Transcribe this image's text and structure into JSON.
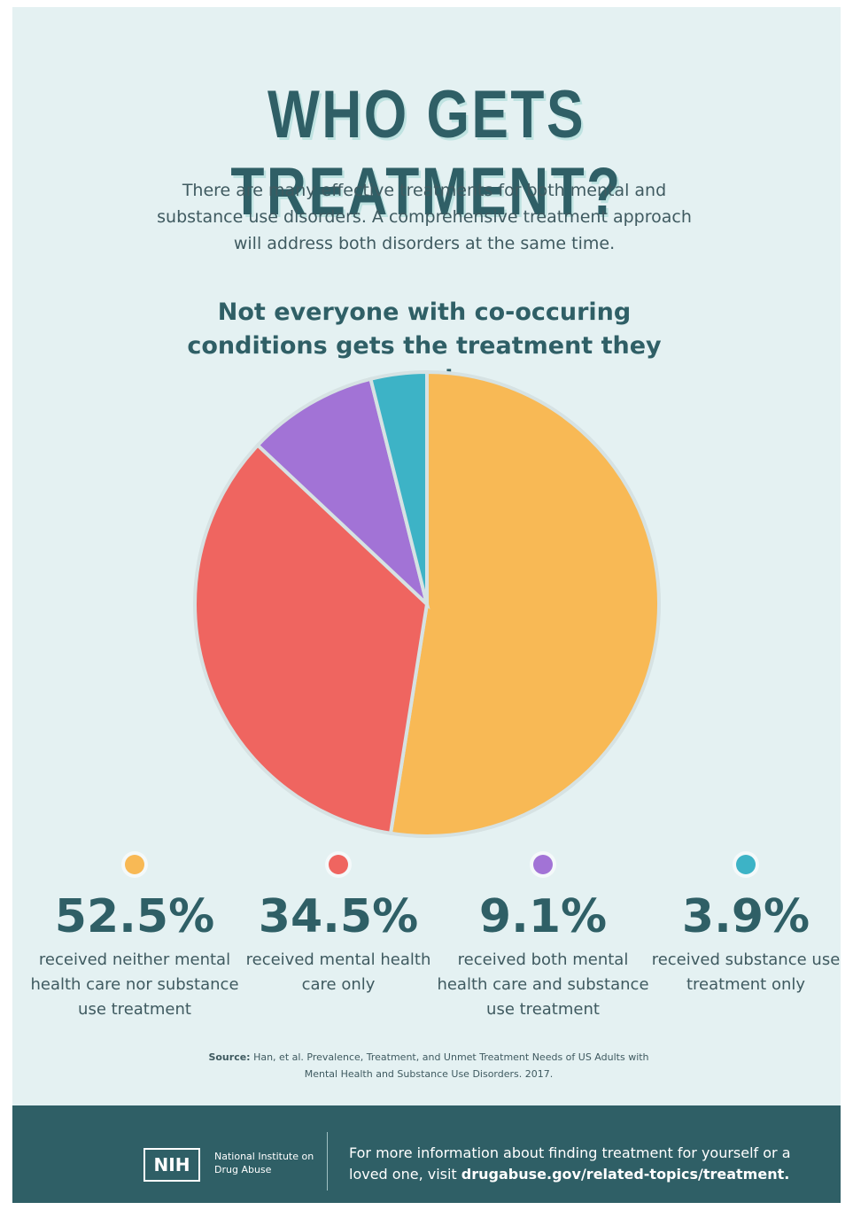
{
  "header": {
    "title": "WHO GETS TREATMENT?",
    "intro": "There are many effective treatments for both mental and substance use disorders. A comprehensive treatment approach will address both disorders at the same time."
  },
  "chart_data": {
    "type": "pie",
    "title": "Not everyone with co-occuring conditions gets the treatment they need.",
    "categories": [
      "received neither mental health care nor substance use treatment",
      "received mental health care only",
      "received both mental health care and substance use treatment",
      "received substance use treatment only"
    ],
    "values": [
      52.5,
      34.5,
      9.1,
      3.9
    ],
    "value_labels": [
      "52.5%",
      "34.5%",
      "9.1%",
      "3.9%"
    ],
    "colors": [
      "#f8b955",
      "#ef6560",
      "#a273d6",
      "#3db3c6"
    ]
  },
  "source": {
    "label": "Source:",
    "text": "Han, et al. Prevalence, Treatment, and Unmet Treatment Needs of US Adults with Mental Health and Substance Use Disorders. 2017."
  },
  "footer": {
    "logo": "NIH",
    "org": "National Institute on Drug Abuse",
    "text": "For more information about finding treatment for yourself or a loved one, visit",
    "link": "drugabuse.gov/related-topics/treatment."
  }
}
